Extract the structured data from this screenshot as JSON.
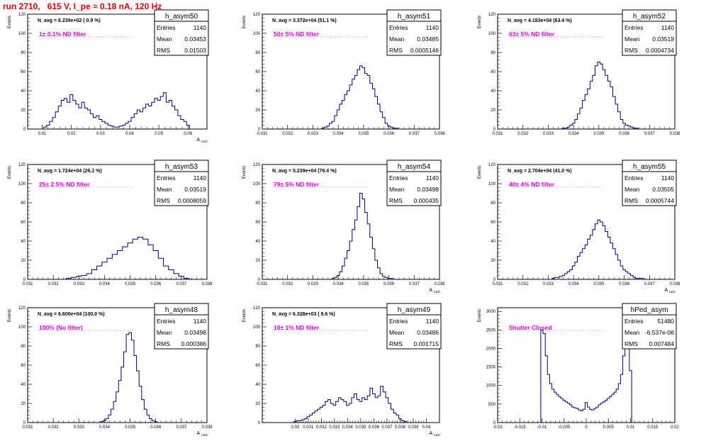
{
  "page_title": "run 2710,   615 V, I_pe ≈ 0.18 nA, 120 Hz",
  "chart_data": [
    {
      "type": "histogram",
      "name": "h_asym50",
      "navg": "N_avg = 6.239e+02 ( 0.9 %)",
      "filter": "1± 0.1% ND filter",
      "stats": [
        [
          "Entries",
          "1140"
        ],
        [
          "Mean",
          "0.03453"
        ],
        [
          "RMS",
          "0.01503"
        ]
      ],
      "ylabel": "Events",
      "xlabel": "A",
      "xlabel_sub": "LED",
      "xlim": [
        0.005,
        0.0665
      ],
      "ylim": [
        0,
        120
      ],
      "xticks": [
        0.01,
        0.02,
        0.03,
        0.04,
        0.05,
        0.06
      ],
      "xtick_labels": [
        "0.01",
        "0.02",
        "0.03",
        "0.04",
        "0.05",
        "0.06"
      ],
      "yticks": [
        0,
        20,
        40,
        60,
        80,
        100,
        120
      ],
      "ytick_labels": [
        "0",
        "20",
        "40",
        "60",
        "80",
        "100",
        "120"
      ],
      "x": [
        0.01,
        0.011,
        0.012,
        0.013,
        0.014,
        0.015,
        0.016,
        0.017,
        0.018,
        0.019,
        0.02,
        0.021,
        0.022,
        0.023,
        0.024,
        0.025,
        0.026,
        0.027,
        0.028,
        0.029,
        0.03,
        0.031,
        0.032,
        0.033,
        0.034,
        0.035,
        0.036,
        0.037,
        0.038,
        0.039,
        0.04,
        0.041,
        0.042,
        0.043,
        0.044,
        0.045,
        0.046,
        0.047,
        0.048,
        0.049,
        0.05,
        0.051,
        0.052,
        0.053,
        0.054,
        0.055,
        0.056,
        0.057,
        0.058,
        0.059,
        0.06
      ],
      "values": [
        0,
        2,
        4,
        8,
        12,
        18,
        24,
        30,
        32,
        28,
        36,
        30,
        26,
        22,
        28,
        22,
        20,
        16,
        12,
        14,
        10,
        8,
        6,
        4,
        3,
        2,
        2,
        3,
        4,
        6,
        8,
        12,
        16,
        20,
        18,
        22,
        26,
        24,
        28,
        32,
        30,
        34,
        38,
        28,
        30,
        24,
        20,
        14,
        10,
        8,
        4
      ]
    },
    {
      "type": "histogram",
      "name": "h_asym51",
      "navg": "N_avg = 3.372e+04 (51.1 %)",
      "filter": "50± 5% ND filter",
      "stats": [
        [
          "Entries",
          "1140"
        ],
        [
          "Mean",
          "0.03485"
        ],
        [
          "RMS",
          "0.0005146"
        ]
      ],
      "ylabel": "Events",
      "xlabel": "",
      "xlabel_sub": "",
      "xlim": [
        0.031,
        0.038
      ],
      "ylim": [
        0,
        120
      ],
      "xticks": [
        0.031,
        0.032,
        0.033,
        0.034,
        0.035,
        0.036,
        0.037,
        0.038
      ],
      "xtick_labels": [
        "0.031",
        "0.032",
        "0.033",
        "0.034",
        "0.035",
        "0.036",
        "0.037",
        "0.038"
      ],
      "yticks": [
        0,
        20,
        40,
        60,
        80,
        100,
        120
      ],
      "ytick_labels": [
        "0",
        "20",
        "40",
        "60",
        "80",
        "100",
        "120"
      ],
      "x": [
        0.0334,
        0.0335,
        0.0336,
        0.0337,
        0.0338,
        0.0339,
        0.034,
        0.0341,
        0.0342,
        0.0343,
        0.0344,
        0.0345,
        0.0346,
        0.0347,
        0.0348,
        0.0349,
        0.035,
        0.0351,
        0.0352,
        0.0353,
        0.0354,
        0.0355,
        0.0356,
        0.0357,
        0.0358,
        0.0359,
        0.036,
        0.0361,
        0.0362,
        0.0363
      ],
      "values": [
        1,
        2,
        3,
        6,
        8,
        14,
        20,
        26,
        30,
        36,
        40,
        46,
        52,
        56,
        62,
        66,
        64,
        58,
        56,
        48,
        42,
        34,
        26,
        18,
        12,
        6,
        3,
        2,
        1,
        1
      ]
    },
    {
      "type": "histogram",
      "name": "h_asym52",
      "navg": "N_avg = 4.183e+04 (63.4 %)",
      "filter": "63± 5% ND filter",
      "stats": [
        [
          "Entries",
          "1140"
        ],
        [
          "Mean",
          "0.03519"
        ],
        [
          "RMS",
          "0.0004734"
        ]
      ],
      "ylabel": "Events",
      "xlabel": "",
      "xlabel_sub": "",
      "xlim": [
        0.031,
        0.038
      ],
      "ylim": [
        0,
        120
      ],
      "xticks": [
        0.031,
        0.032,
        0.033,
        0.034,
        0.035,
        0.036,
        0.037,
        0.038
      ],
      "xtick_labels": [
        "0.031",
        "0.032",
        "0.033",
        "0.034",
        "0.035",
        "0.036",
        "0.037",
        "0.038"
      ],
      "yticks": [
        0,
        20,
        40,
        60,
        80,
        100,
        120
      ],
      "ytick_labels": [
        "0",
        "20",
        "40",
        "60",
        "80",
        "100",
        "120"
      ],
      "x": [
        0.0336,
        0.0337,
        0.0338,
        0.0339,
        0.034,
        0.0341,
        0.0342,
        0.0343,
        0.0344,
        0.0345,
        0.0346,
        0.0347,
        0.0348,
        0.0349,
        0.035,
        0.0351,
        0.0352,
        0.0353,
        0.0354,
        0.0355,
        0.0356,
        0.0357,
        0.0358,
        0.0359,
        0.036,
        0.0361,
        0.0362,
        0.0363,
        0.0364,
        0.0365
      ],
      "values": [
        1,
        1,
        2,
        4,
        6,
        10,
        16,
        22,
        30,
        36,
        42,
        50,
        56,
        66,
        70,
        68,
        62,
        56,
        50,
        44,
        34,
        26,
        18,
        10,
        6,
        4,
        3,
        2,
        1,
        1
      ]
    },
    {
      "type": "histogram",
      "name": "h_asym53",
      "navg": "N_avg = 1.724e+04 (26.1 %)",
      "filter": "25± 2.5% ND filter",
      "stats": [
        [
          "Entries",
          "1140"
        ],
        [
          "Mean",
          "0.03519"
        ],
        [
          "RMS",
          "0.0008059"
        ]
      ],
      "ylabel": "Events",
      "xlabel": "",
      "xlabel_sub": "",
      "xlim": [
        0.031,
        0.038
      ],
      "ylim": [
        0,
        120
      ],
      "xticks": [
        0.031,
        0.032,
        0.033,
        0.034,
        0.035,
        0.036,
        0.037,
        0.038
      ],
      "xtick_labels": [
        "0.031",
        "0.032",
        "0.033",
        "0.034",
        "0.035",
        "0.036",
        "0.037",
        "0.038"
      ],
      "yticks": [
        0,
        20,
        40,
        60,
        80,
        100,
        120
      ],
      "ytick_labels": [
        "0",
        "20",
        "40",
        "60",
        "80",
        "100",
        "120"
      ],
      "x": [
        0.0326,
        0.0328,
        0.033,
        0.0332,
        0.0334,
        0.0336,
        0.0338,
        0.034,
        0.0342,
        0.0344,
        0.0346,
        0.0348,
        0.035,
        0.0352,
        0.0354,
        0.0356,
        0.0358,
        0.036,
        0.0362,
        0.0364,
        0.0366,
        0.0368,
        0.037,
        0.0372
      ],
      "values": [
        1,
        2,
        3,
        4,
        6,
        10,
        14,
        18,
        22,
        26,
        30,
        34,
        38,
        42,
        44,
        42,
        36,
        30,
        22,
        14,
        10,
        6,
        3,
        1
      ]
    },
    {
      "type": "histogram",
      "name": "h_asym54",
      "navg": "N_avg = 5.239e+04 (79.4 %)",
      "filter": "79± 5% ND filter",
      "stats": [
        [
          "Entries",
          "1140"
        ],
        [
          "Mean",
          "0.03498"
        ],
        [
          "RMS",
          "0.000435"
        ]
      ],
      "ylabel": "Events",
      "xlabel": "A",
      "xlabel_sub": "LED",
      "xlim": [
        0.031,
        0.038
      ],
      "ylim": [
        0,
        120
      ],
      "xticks": [
        0.031,
        0.032,
        0.033,
        0.034,
        0.035,
        0.036,
        0.037,
        0.038
      ],
      "xtick_labels": [
        "0.031",
        "0.032",
        "0.033",
        "0.034",
        "0.035",
        "0.036",
        "0.037",
        "0.038"
      ],
      "yticks": [
        0,
        20,
        40,
        60,
        80,
        100,
        120
      ],
      "ytick_labels": [
        "0",
        "20",
        "40",
        "60",
        "80",
        "100",
        "120"
      ],
      "x": [
        0.0338,
        0.0339,
        0.034,
        0.0341,
        0.0342,
        0.0343,
        0.0344,
        0.0345,
        0.0346,
        0.0347,
        0.0348,
        0.0349,
        0.035,
        0.0351,
        0.0352,
        0.0353,
        0.0354,
        0.0355,
        0.0356,
        0.0357,
        0.0358,
        0.0359,
        0.036,
        0.0361
      ],
      "values": [
        1,
        2,
        4,
        8,
        14,
        22,
        30,
        40,
        52,
        62,
        76,
        90,
        84,
        70,
        58,
        44,
        32,
        20,
        12,
        6,
        3,
        2,
        1,
        1
      ]
    },
    {
      "type": "histogram",
      "name": "h_asym55",
      "navg": "N_avg = 2.704e+04 (41.0 %)",
      "filter": "40± 4% ND filter",
      "stats": [
        [
          "Entries",
          "1140"
        ],
        [
          "Mean",
          "0.03505"
        ],
        [
          "RMS",
          "0.0005744"
        ]
      ],
      "ylabel": "Events",
      "xlabel": "A",
      "xlabel_sub": "LED",
      "xlim": [
        0.031,
        0.038
      ],
      "ylim": [
        0,
        120
      ],
      "xticks": [
        0.031,
        0.032,
        0.033,
        0.034,
        0.035,
        0.036,
        0.037,
        0.038
      ],
      "xtick_labels": [
        "0.031",
        "0.032",
        "0.033",
        "0.034",
        "0.035",
        "0.036",
        "0.037",
        "0.038"
      ],
      "yticks": [
        0,
        20,
        40,
        60,
        80,
        100,
        120
      ],
      "ytick_labels": [
        "0",
        "20",
        "40",
        "60",
        "80",
        "100",
        "120"
      ],
      "x": [
        0.0332,
        0.0333,
        0.0334,
        0.0335,
        0.0336,
        0.0337,
        0.0338,
        0.0339,
        0.034,
        0.0341,
        0.0342,
        0.0343,
        0.0344,
        0.0345,
        0.0346,
        0.0347,
        0.0348,
        0.0349,
        0.035,
        0.0351,
        0.0352,
        0.0353,
        0.0354,
        0.0355,
        0.0356,
        0.0357,
        0.0358,
        0.0359,
        0.036,
        0.0361,
        0.0362,
        0.0363,
        0.0364,
        0.0365,
        0.0366,
        0.0367
      ],
      "values": [
        1,
        2,
        2,
        3,
        4,
        6,
        8,
        10,
        14,
        18,
        24,
        28,
        32,
        36,
        42,
        46,
        52,
        58,
        62,
        60,
        56,
        50,
        44,
        38,
        32,
        26,
        20,
        14,
        10,
        8,
        6,
        4,
        2,
        1,
        1,
        1
      ]
    },
    {
      "type": "histogram",
      "name": "h_asym48",
      "navg": "N_avg = 6.600e+04 (100.0 %)",
      "filter": "100% (No filter)",
      "stats": [
        [
          "Entries",
          "1140"
        ],
        [
          "Mean",
          "0.03498"
        ],
        [
          "RMS",
          "0.000386"
        ]
      ],
      "ylabel": "Events",
      "xlabel": "A",
      "xlabel_sub": "LED",
      "xlim": [
        0.031,
        0.038
      ],
      "ylim": [
        0,
        120
      ],
      "xticks": [
        0.031,
        0.032,
        0.033,
        0.034,
        0.035,
        0.036,
        0.037,
        0.038
      ],
      "xtick_labels": [
        "0.031",
        "0.032",
        "0.033",
        "0.034",
        "0.035",
        "0.036",
        "0.037",
        "0.038"
      ],
      "yticks": [
        0,
        20,
        40,
        60,
        80,
        100,
        120
      ],
      "ytick_labels": [
        "0",
        "20",
        "40",
        "60",
        "80",
        "100",
        "120"
      ],
      "x": [
        0.0339,
        0.034,
        0.0341,
        0.0342,
        0.0343,
        0.0344,
        0.0345,
        0.0346,
        0.0347,
        0.0348,
        0.0349,
        0.035,
        0.0351,
        0.0352,
        0.0353,
        0.0354,
        0.0355,
        0.0356,
        0.0357,
        0.0358,
        0.0359,
        0.036
      ],
      "values": [
        1,
        2,
        4,
        8,
        14,
        22,
        32,
        44,
        58,
        74,
        92,
        94,
        86,
        70,
        54,
        38,
        24,
        14,
        8,
        4,
        2,
        1
      ]
    },
    {
      "type": "histogram",
      "name": "h_asym49",
      "navg": "N_avg = 6.328e+03 ( 9.6 %)",
      "filter": "10± 1% ND filter",
      "stats": [
        [
          "Entries",
          "1140"
        ],
        [
          "Mean",
          "0.03486"
        ],
        [
          "RMS",
          "0.001715"
        ]
      ],
      "ylabel": "Events",
      "xlabel": "A",
      "xlabel_sub": "LED",
      "xlim": [
        0.0275,
        0.041
      ],
      "ylim": [
        0,
        120
      ],
      "xticks": [
        0.03,
        0.031,
        0.032,
        0.033,
        0.034,
        0.035,
        0.036,
        0.037,
        0.038,
        0.039,
        0.04
      ],
      "xtick_labels": [
        "0.03",
        "0.031",
        "0.032",
        "0.033",
        "0.034",
        "0.035",
        "0.036",
        "0.037",
        "0.038",
        "0.039",
        "0.04"
      ],
      "yticks": [
        0,
        20,
        40,
        60,
        80,
        100,
        120
      ],
      "ytick_labels": [
        "0",
        "20",
        "40",
        "60",
        "80",
        "100",
        "120"
      ],
      "x": [
        0.03,
        0.0302,
        0.0304,
        0.0306,
        0.0308,
        0.031,
        0.0312,
        0.0314,
        0.0316,
        0.0318,
        0.032,
        0.0322,
        0.0324,
        0.0326,
        0.0328,
        0.033,
        0.0332,
        0.0334,
        0.0336,
        0.0338,
        0.034,
        0.0342,
        0.0344,
        0.0346,
        0.0348,
        0.035,
        0.0352,
        0.0354,
        0.0356,
        0.0358,
        0.036,
        0.0362,
        0.0364,
        0.0366,
        0.0368,
        0.037,
        0.0372,
        0.0374,
        0.0376,
        0.0378,
        0.038,
        0.0382,
        0.0384
      ],
      "values": [
        1,
        2,
        2,
        3,
        4,
        6,
        8,
        10,
        12,
        14,
        16,
        18,
        22,
        24,
        20,
        18,
        22,
        26,
        24,
        22,
        18,
        20,
        26,
        30,
        24,
        22,
        26,
        24,
        28,
        36,
        30,
        26,
        28,
        38,
        32,
        26,
        20,
        14,
        10,
        8,
        4,
        2,
        1
      ]
    },
    {
      "type": "histogram",
      "name": "hPed_asym",
      "navg": "",
      "filter": "Shutter Closed",
      "stats": [
        [
          "Entries",
          "51480"
        ],
        [
          "Mean",
          "-6.537e-06"
        ],
        [
          "RMS",
          "0.007484"
        ]
      ],
      "ylabel": "Events",
      "xlabel": "",
      "xlabel_sub": "",
      "xlim": [
        -0.02,
        0.02
      ],
      "ylim": [
        0,
        3100
      ],
      "xticks": [
        -0.02,
        -0.015,
        -0.01,
        -0.005,
        0,
        0.005,
        0.01,
        0.015,
        0.02
      ],
      "xtick_labels": [
        "-0.02",
        "-0.015",
        "-0.01",
        "-0.005",
        "0",
        "0.005",
        "0.01",
        "0.015",
        "0.02"
      ],
      "yticks": [
        0,
        500,
        1000,
        1500,
        2000,
        2500,
        3000
      ],
      "ytick_labels": [
        "0",
        "500",
        "1000",
        "1500",
        "2000",
        "2500",
        "3000"
      ],
      "x": [
        -0.0105,
        -0.01,
        -0.0095,
        -0.009,
        -0.0085,
        -0.008,
        -0.0075,
        -0.007,
        -0.0065,
        -0.006,
        -0.0055,
        -0.005,
        -0.0045,
        -0.004,
        -0.0035,
        -0.003,
        -0.0025,
        -0.002,
        -0.0015,
        -0.001,
        -0.0005,
        0.0,
        0.0005,
        0.001,
        0.0015,
        0.002,
        0.0025,
        0.003,
        0.0035,
        0.004,
        0.0045,
        0.005,
        0.0055,
        0.006,
        0.0065,
        0.007,
        0.0075,
        0.008,
        0.0085,
        0.009,
        0.0095,
        0.01,
        0.0105
      ],
      "values": [
        0,
        2500,
        2400,
        1800,
        1300,
        1050,
        900,
        820,
        760,
        700,
        650,
        600,
        560,
        520,
        480,
        420,
        400,
        380,
        340,
        320,
        360,
        540,
        420,
        360,
        340,
        380,
        420,
        480,
        520,
        560,
        600,
        650,
        700,
        760,
        820,
        900,
        1050,
        1300,
        1800,
        2300,
        2550,
        1400,
        0
      ]
    }
  ]
}
